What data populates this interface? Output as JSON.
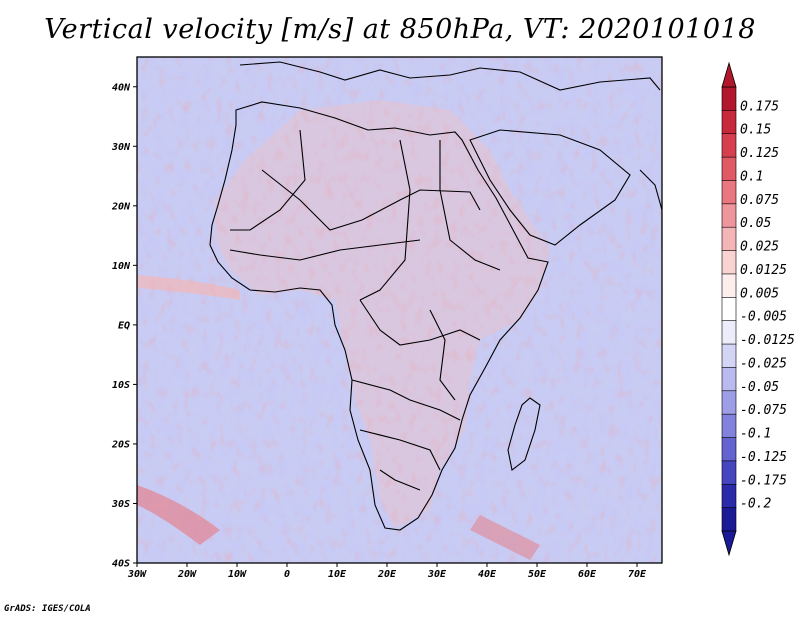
{
  "title": "Vertical velocity [m/s] at 850hPa, VT: 2020101018",
  "credit": "GrADS: IGES/COLA",
  "map": {
    "lon_range": [
      -30,
      75
    ],
    "lat_range": [
      -40,
      45
    ],
    "lat_ticks": [
      {
        "value": 40,
        "label": "40N"
      },
      {
        "value": 30,
        "label": "30N"
      },
      {
        "value": 20,
        "label": "20N"
      },
      {
        "value": 10,
        "label": "10N"
      },
      {
        "value": 0,
        "label": "EQ"
      },
      {
        "value": -10,
        "label": "10S"
      },
      {
        "value": -20,
        "label": "20S"
      },
      {
        "value": -30,
        "label": "30S"
      },
      {
        "value": -40,
        "label": "40S"
      }
    ],
    "lon_ticks": [
      {
        "value": -30,
        "label": "30W"
      },
      {
        "value": -20,
        "label": "20W"
      },
      {
        "value": -10,
        "label": "10W"
      },
      {
        "value": 0,
        "label": "0"
      },
      {
        "value": 10,
        "label": "10E"
      },
      {
        "value": 20,
        "label": "20E"
      },
      {
        "value": 30,
        "label": "30E"
      },
      {
        "value": 40,
        "label": "40E"
      },
      {
        "value": 50,
        "label": "50E"
      },
      {
        "value": 60,
        "label": "60E"
      },
      {
        "value": 70,
        "label": "70E"
      }
    ],
    "coastline_color": "#000000"
  },
  "colorbar": {
    "labels": [
      "0.175",
      "0.15",
      "0.125",
      "0.1",
      "0.075",
      "0.05",
      "0.025",
      "0.0125",
      "0.005",
      "-0.005",
      "-0.0125",
      "-0.025",
      "-0.05",
      "-0.075",
      "-0.1",
      "-0.125",
      "-0.175",
      "-0.2"
    ],
    "colors": [
      "#b2182b",
      "#c62a3a",
      "#d6404e",
      "#e05a65",
      "#e8777f",
      "#ee969b",
      "#f4b5b7",
      "#f9d2d2",
      "#fdeeee",
      "#ffffff",
      "#ececfa",
      "#d4d4f4",
      "#babaee",
      "#9e9ee6",
      "#8282dc",
      "#6464d0",
      "#4646c0",
      "#2a2aaa",
      "#1a1a96"
    ]
  }
}
